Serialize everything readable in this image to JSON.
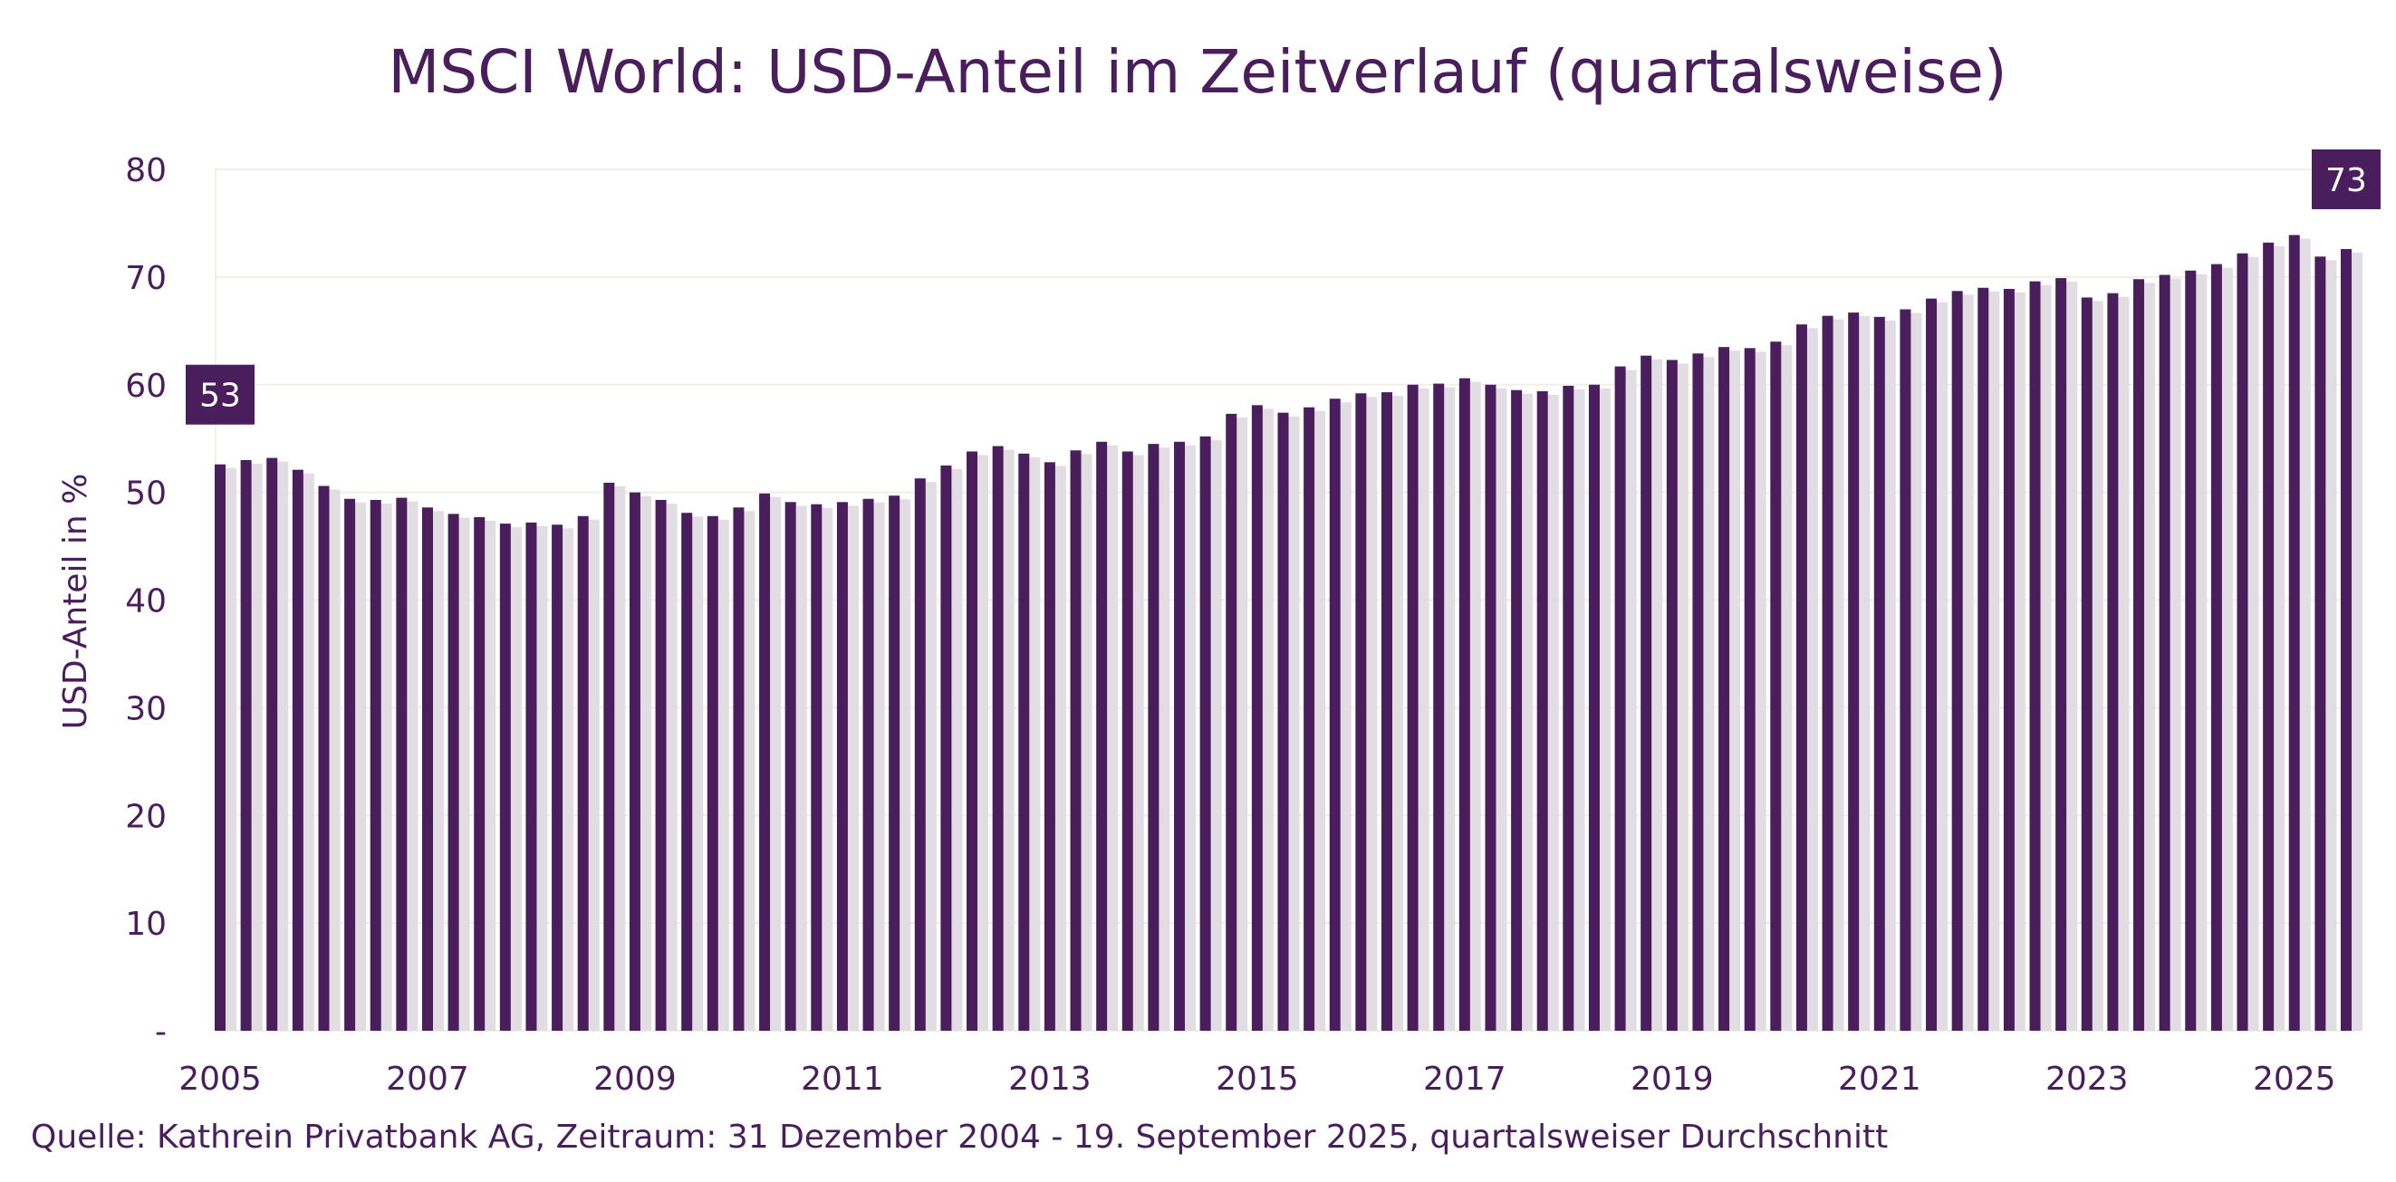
{
  "chart_data": {
    "type": "bar",
    "title": "MSCI World: USD-Anteil im Zeitverlauf (quartalsweise)",
    "xlabel": "",
    "ylabel": "USD-Anteil in %",
    "source": "Quelle: Kathrein Privatbank AG, Zeitraum: 31 Dezember 2004 - 19. September 2025, quartalsweiser Durchschnitt",
    "ylim": [
      0,
      80
    ],
    "yticks": [
      {
        "value": 0,
        "label": "-"
      },
      {
        "value": 10,
        "label": "10"
      },
      {
        "value": 20,
        "label": "20"
      },
      {
        "value": 30,
        "label": "30"
      },
      {
        "value": 40,
        "label": "40"
      },
      {
        "value": 50,
        "label": "50"
      },
      {
        "value": 60,
        "label": "60"
      },
      {
        "value": 70,
        "label": "70"
      },
      {
        "value": 80,
        "label": "80"
      }
    ],
    "xticks": [
      "2005",
      "2007",
      "2009",
      "2011",
      "2013",
      "2015",
      "2017",
      "2019",
      "2021",
      "2023",
      "2025"
    ],
    "grid": true,
    "colors": {
      "bar": "#4a1d5c",
      "shadow": "#e2dde3",
      "grid": "#f3efe6"
    },
    "categories": [
      "2005-Q1",
      "2005-Q2",
      "2005-Q3",
      "2005-Q4",
      "2006-Q1",
      "2006-Q2",
      "2006-Q3",
      "2006-Q4",
      "2007-Q1",
      "2007-Q2",
      "2007-Q3",
      "2007-Q4",
      "2008-Q1",
      "2008-Q2",
      "2008-Q3",
      "2008-Q4",
      "2009-Q1",
      "2009-Q2",
      "2009-Q3",
      "2009-Q4",
      "2010-Q1",
      "2010-Q2",
      "2010-Q3",
      "2010-Q4",
      "2011-Q1",
      "2011-Q2",
      "2011-Q3",
      "2011-Q4",
      "2012-Q1",
      "2012-Q2",
      "2012-Q3",
      "2012-Q4",
      "2013-Q1",
      "2013-Q2",
      "2013-Q3",
      "2013-Q4",
      "2014-Q1",
      "2014-Q2",
      "2014-Q3",
      "2014-Q4",
      "2015-Q1",
      "2015-Q2",
      "2015-Q3",
      "2015-Q4",
      "2016-Q1",
      "2016-Q2",
      "2016-Q3",
      "2016-Q4",
      "2017-Q1",
      "2017-Q2",
      "2017-Q3",
      "2017-Q4",
      "2018-Q1",
      "2018-Q2",
      "2018-Q3",
      "2018-Q4",
      "2019-Q1",
      "2019-Q2",
      "2019-Q3",
      "2019-Q4",
      "2020-Q1",
      "2020-Q2",
      "2020-Q3",
      "2020-Q4",
      "2021-Q1",
      "2021-Q2",
      "2021-Q3",
      "2021-Q4",
      "2022-Q1",
      "2022-Q2",
      "2022-Q3",
      "2022-Q4",
      "2023-Q1",
      "2023-Q2",
      "2023-Q3",
      "2023-Q4",
      "2024-Q1",
      "2024-Q2",
      "2024-Q3",
      "2024-Q4",
      "2025-Q1",
      "2025-Q2",
      "2025-Q3"
    ],
    "values": [
      52.6,
      53.0,
      53.2,
      52.1,
      50.6,
      49.4,
      49.3,
      49.5,
      48.6,
      48.0,
      47.7,
      47.1,
      47.2,
      47.0,
      47.8,
      50.9,
      50.0,
      49.3,
      48.1,
      47.8,
      48.6,
      49.9,
      49.1,
      48.9,
      49.1,
      49.4,
      49.7,
      51.3,
      52.5,
      53.8,
      54.3,
      53.6,
      52.8,
      53.9,
      54.7,
      53.8,
      54.5,
      54.7,
      55.2,
      57.3,
      58.1,
      57.4,
      57.9,
      58.7,
      59.2,
      59.3,
      60.0,
      60.1,
      60.6,
      60.0,
      59.5,
      59.4,
      59.9,
      60.0,
      61.7,
      62.7,
      62.3,
      62.9,
      63.5,
      63.4,
      64.0,
      65.6,
      66.4,
      66.7,
      66.3,
      67.0,
      68.0,
      68.7,
      69.0,
      68.9,
      69.6,
      69.9,
      68.1,
      68.5,
      69.8,
      70.2,
      70.6,
      71.2,
      72.2,
      73.2,
      73.9,
      71.9,
      72.6
    ],
    "annotations": [
      {
        "index": 0,
        "label": "53"
      },
      {
        "index": 82,
        "label": "73"
      }
    ]
  }
}
